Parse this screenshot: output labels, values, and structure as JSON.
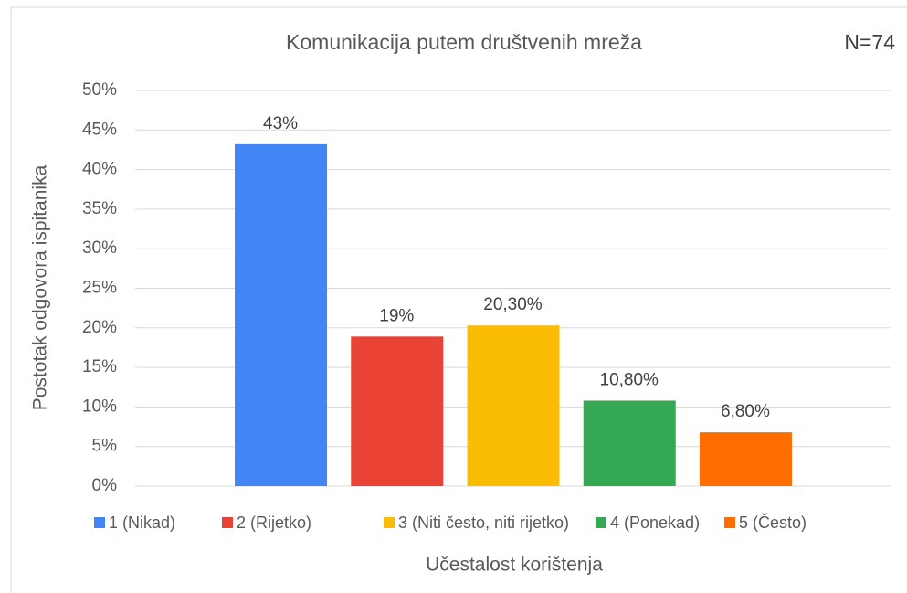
{
  "chart_data": {
    "type": "bar",
    "title": "Komunikacija putem društvenih mreža",
    "annotation": "N=74",
    "x_label": "Učestalost korištenja",
    "y_label": "Postotak odgovora ispitanika",
    "categories": [
      "1 (Nikad)",
      "2 (Rijetko)",
      "3 (Niti često, niti rijetko)",
      "4 (Ponekad)",
      "5 (Često)"
    ],
    "values": [
      43.2,
      18.9,
      20.3,
      10.8,
      6.8
    ],
    "value_labels": [
      "43%",
      "19%",
      "20,30%",
      "10,80%",
      "6,80%"
    ],
    "colors": [
      "#4285f4",
      "#ea4335",
      "#fbbc04",
      "#34a853",
      "#ff6d01"
    ],
    "ylim": [
      0,
      50
    ],
    "yticks": [
      {
        "value": 0,
        "label": "0%"
      },
      {
        "value": 5,
        "label": "5%"
      },
      {
        "value": 10,
        "label": "10%"
      },
      {
        "value": 15,
        "label": "15%"
      },
      {
        "value": 20,
        "label": "20%"
      },
      {
        "value": 25,
        "label": "25%"
      },
      {
        "value": 30,
        "label": "30%"
      },
      {
        "value": 35,
        "label": "35%"
      },
      {
        "value": 40,
        "label": "40%"
      },
      {
        "value": 45,
        "label": "45%"
      },
      {
        "value": 50,
        "label": "50%"
      }
    ],
    "grid": true,
    "legend": "bottom"
  }
}
